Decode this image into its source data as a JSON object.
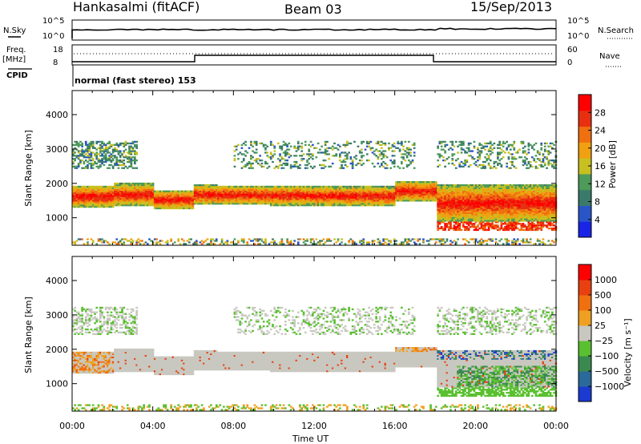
{
  "header": {
    "station": "Hankasalmi (fitACF)",
    "beam": "Beam 03",
    "date": "15/Sep/2013"
  },
  "aux": {
    "nsky_label": "N.Sky",
    "nsearch_label": "N.Search",
    "freq_label": "Freq.",
    "freq_unit": "[MHz]",
    "nave_label": "Nave",
    "cpid_label": "CPID",
    "mode_text": "normal (fast stereo) 153",
    "noise_left_ticks": [
      "10^5",
      "10^0"
    ],
    "noise_right_ticks": [
      "10^5",
      "10^0"
    ],
    "freq_ticks": [
      "18",
      "8"
    ],
    "nave_ticks": [
      "60",
      "0"
    ]
  },
  "chart_data": [
    {
      "type": "heatmap",
      "name": "power-panel",
      "ylabel": "Slant Range [km]",
      "xlabel": "Time UT",
      "xticks": [
        "00:00",
        "04:00",
        "08:00",
        "12:00",
        "16:00",
        "20:00",
        "00:00"
      ],
      "yticks": [
        1000,
        2000,
        3000,
        4000
      ],
      "ylim": [
        200,
        4700
      ],
      "xlim_hours": [
        0,
        24
      ],
      "colorbar": {
        "label": "Power [dB]",
        "ticks": [
          4,
          8,
          12,
          16,
          20,
          24,
          28
        ],
        "colors": [
          "#1a24e6",
          "#2a55c8",
          "#3a7a6a",
          "#4d9a5a",
          "#c8c020",
          "#f0a010",
          "#f07010",
          "#e83010",
          "#ff0000"
        ]
      }
    },
    {
      "type": "heatmap",
      "name": "velocity-panel",
      "ylabel": "Slant Range [km]",
      "xlabel": "Time UT",
      "xticks": [
        "00:00",
        "04:00",
        "08:00",
        "12:00",
        "16:00",
        "20:00",
        "00:00"
      ],
      "yticks": [
        1000,
        2000,
        3000,
        4000
      ],
      "ylim": [
        200,
        4700
      ],
      "xlim_hours": [
        0,
        24
      ],
      "colorbar": {
        "label": "Velocity [m s⁻¹]",
        "ticks": [
          "1000",
          "500",
          "100",
          "25",
          "−25",
          "−100",
          "−500",
          "−1000"
        ],
        "colors": [
          "#1a3ad0",
          "#2a6a9a",
          "#3a8a50",
          "#5ac030",
          "#c8c8c0",
          "#f0a020",
          "#f07010",
          "#e84010",
          "#ff0000"
        ]
      }
    }
  ],
  "footer": {
    "xlabel": "Time UT"
  }
}
